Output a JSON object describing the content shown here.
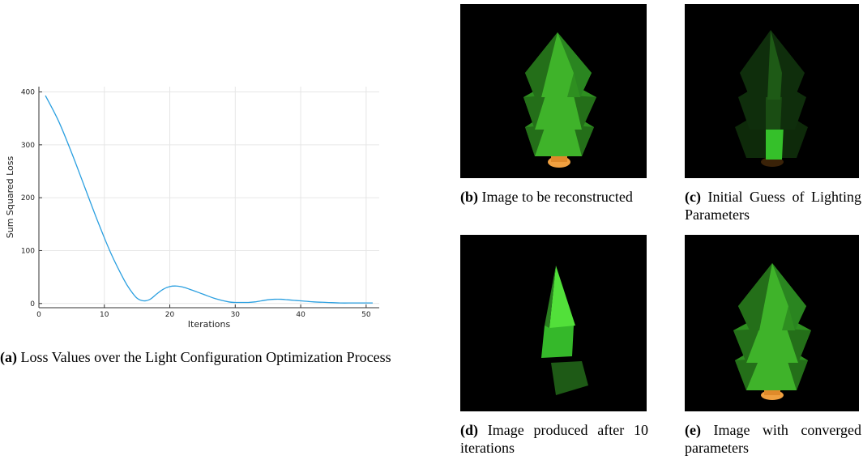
{
  "chart_data": {
    "type": "line",
    "xlabel": "Iterations",
    "ylabel": "Sum Squared Loss",
    "xlim": [
      0,
      52
    ],
    "ylim": [
      -8,
      410
    ],
    "xticks": [
      0,
      10,
      20,
      30,
      40,
      50
    ],
    "yticks": [
      0,
      100,
      200,
      300,
      400
    ],
    "grid": true,
    "series": [
      {
        "color": "#2a9fe0",
        "x": [
          1,
          3,
          5,
          7,
          9,
          11,
          13,
          14,
          15,
          16,
          17,
          18,
          19,
          20,
          21,
          22,
          23,
          25,
          27,
          29,
          30,
          31,
          32,
          33,
          34,
          35,
          36,
          37,
          38,
          39,
          40,
          42,
          44,
          46,
          48,
          50,
          51
        ],
        "y": [
          393,
          345,
          285,
          220,
          155,
          95,
          45,
          25,
          10,
          5,
          8,
          18,
          27,
          32,
          33,
          31,
          27,
          18,
          9,
          3,
          2,
          2,
          2,
          3,
          5,
          7,
          8,
          8,
          7,
          6,
          5,
          3,
          2,
          1,
          1,
          1,
          1
        ]
      }
    ]
  },
  "captions": {
    "a": {
      "label": "(a)",
      "text": "Loss Values over the Light Configuration Optimization Process"
    },
    "b": {
      "label": "(b)",
      "text": "Image to be reconstructed"
    },
    "c": {
      "label": "(c)",
      "text": "Initial Guess of Lighting Parameters"
    },
    "d": {
      "label": "(d)",
      "text": "Image produced after 10 iterations"
    },
    "e": {
      "label": "(e)",
      "text": "Image with converged parameters"
    }
  },
  "colors": {
    "tree_bright": "#3fb32a",
    "tree_mid": "#2e8f20",
    "tree_dark": "#1e5e15",
    "trunk": "#f0a040",
    "background": "#000000"
  }
}
